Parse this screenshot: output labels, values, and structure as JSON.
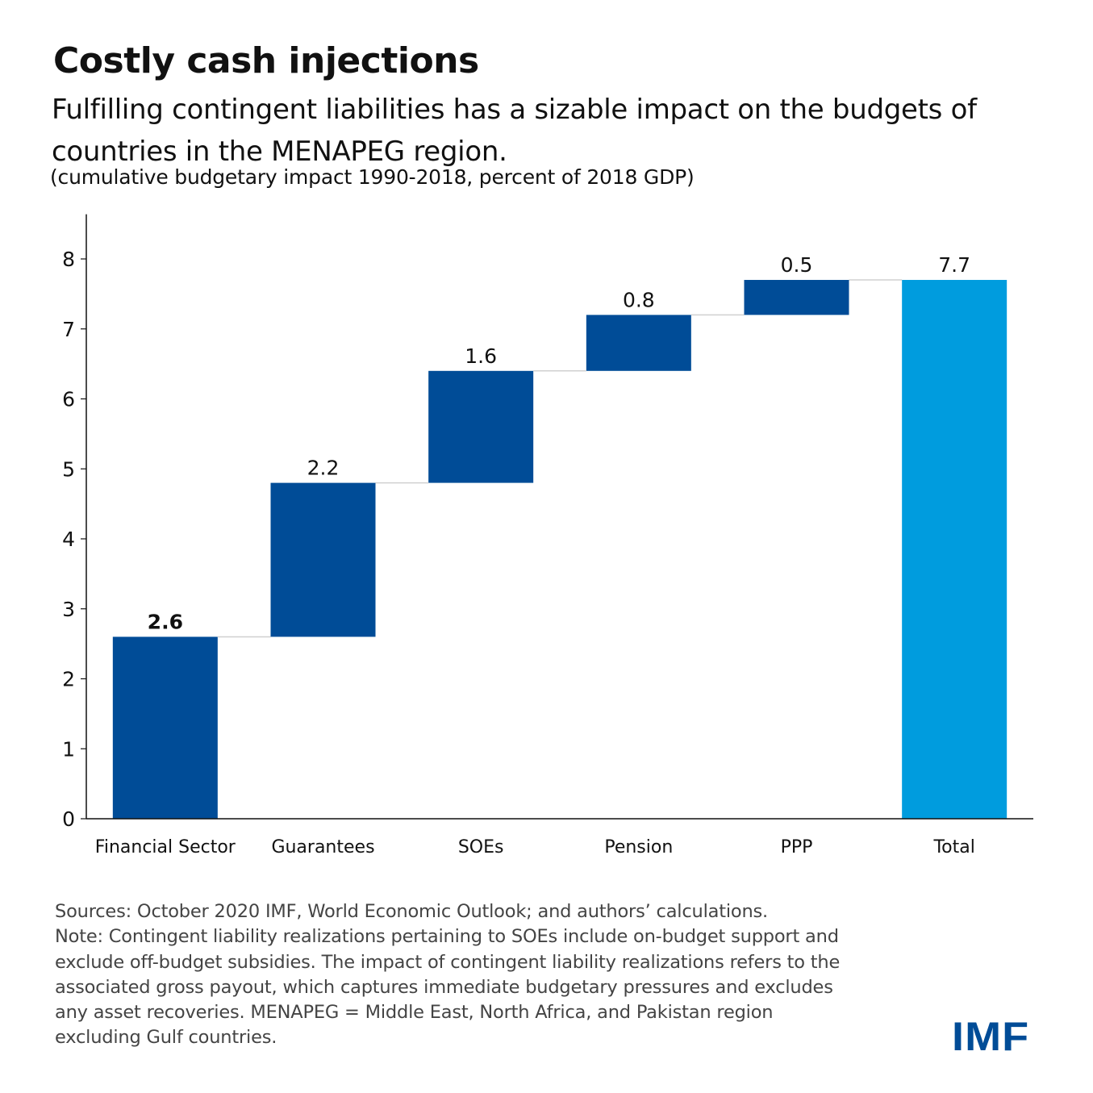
{
  "header": {
    "title": "Costly cash injections",
    "subtitle": "Fulfilling contingent liabilities has a sizable impact on the budgets of countries in the MENAPEG region.",
    "unit_note": "(cumulative budgetary impact 1990-2018, percent of 2018 GDP)"
  },
  "chart_data": {
    "type": "bar",
    "subtype": "waterfall",
    "title": "Costly cash injections",
    "xlabel": "",
    "ylabel": "",
    "ylim": [
      0,
      8.5
    ],
    "yticks": [
      0,
      1,
      2,
      3,
      4,
      5,
      6,
      7,
      8
    ],
    "grid": false,
    "categories": [
      "Financial Sector",
      "Guarantees",
      "SOEs",
      "Pension",
      "PPP",
      "Total"
    ],
    "values": [
      2.6,
      2.2,
      1.6,
      0.8,
      0.5,
      7.7
    ],
    "data_labels": [
      "2.6",
      "2.2",
      "1.6",
      "0.8",
      "0.5",
      "7.7"
    ],
    "is_total": [
      false,
      false,
      false,
      false,
      false,
      true
    ],
    "bold_label_index": 0,
    "colors": {
      "increment": "#004c97",
      "total": "#009cde",
      "connector": "#d0d0d0"
    }
  },
  "footer": {
    "notes": [
      "Sources: October 2020 IMF, World Economic Outlook; and authors’ calculations.",
      "Note: Contingent liability realizations pertaining to SOEs include on-budget support and",
      "exclude off-budget subsidies. The impact of contingent liability realizations refers to the",
      "associated gross payout, which captures immediate budgetary pressures and excludes",
      "any asset recoveries. MENAPEG = Middle East, North Africa, and Pakistan region",
      "excluding Gulf countries."
    ],
    "logo": "IMF"
  }
}
